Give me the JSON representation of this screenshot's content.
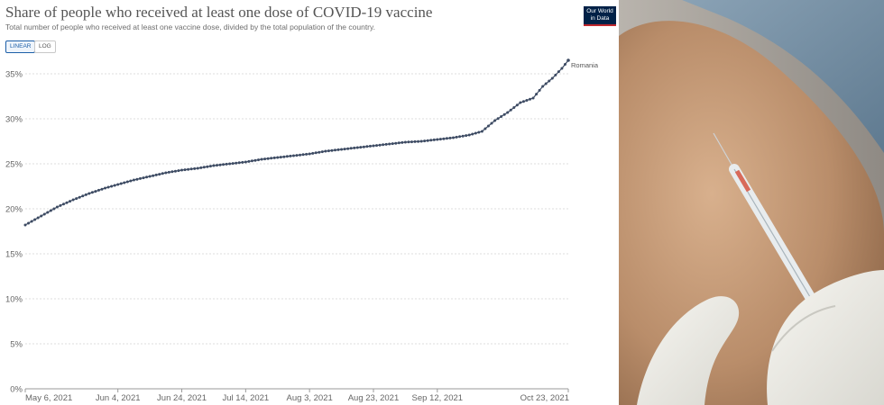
{
  "header": {
    "title": "Share of people who received at least one dose of COVID-19 vaccine",
    "subtitle": "Total number of people who received at least one vaccine dose, divided by the total population of the country.",
    "toggle_linear": "LINEAR",
    "toggle_log": "LOG"
  },
  "logo": {
    "line1": "Our World",
    "line2": "in Data"
  },
  "colors": {
    "series": "#3d4b63",
    "gridline": "#dddddd",
    "logo_bg": "#002147",
    "logo_accent": "#c0272d"
  },
  "chart_data": {
    "type": "line",
    "title": "Share of people who received at least one dose of COVID-19 vaccine",
    "subtitle": "Total number of people who received at least one vaccine dose, divided by the total population of the country.",
    "xlabel": "",
    "ylabel": "",
    "x_range": [
      "2021-05-06",
      "2021-10-23"
    ],
    "ylim": [
      0,
      35
    ],
    "yticks": [
      0,
      5,
      10,
      15,
      20,
      25,
      30,
      35
    ],
    "ytick_labels": [
      "0%",
      "5%",
      "10%",
      "15%",
      "20%",
      "25%",
      "30%",
      "35%"
    ],
    "xticks": [
      "2021-05-06",
      "2021-06-04",
      "2021-06-24",
      "2021-07-14",
      "2021-08-03",
      "2021-08-23",
      "2021-09-12",
      "2021-10-23"
    ],
    "xtick_labels": [
      "May 6, 2021",
      "Jun 4, 2021",
      "Jun 24, 2021",
      "Jul 14, 2021",
      "Aug 3, 2021",
      "Aug 23, 2021",
      "Sep 12, 2021",
      "Oct 23, 2021"
    ],
    "grid": true,
    "series": [
      {
        "name": "Romania",
        "points": [
          [
            "2021-05-06",
            18.2
          ],
          [
            "2021-05-11",
            19.2
          ],
          [
            "2021-05-16",
            20.2
          ],
          [
            "2021-05-21",
            21.0
          ],
          [
            "2021-05-26",
            21.7
          ],
          [
            "2021-05-31",
            22.3
          ],
          [
            "2021-06-04",
            22.7
          ],
          [
            "2021-06-09",
            23.2
          ],
          [
            "2021-06-14",
            23.6
          ],
          [
            "2021-06-19",
            24.0
          ],
          [
            "2021-06-24",
            24.3
          ],
          [
            "2021-06-29",
            24.5
          ],
          [
            "2021-07-04",
            24.8
          ],
          [
            "2021-07-09",
            25.0
          ],
          [
            "2021-07-14",
            25.2
          ],
          [
            "2021-07-19",
            25.5
          ],
          [
            "2021-07-24",
            25.7
          ],
          [
            "2021-07-29",
            25.9
          ],
          [
            "2021-08-03",
            26.1
          ],
          [
            "2021-08-08",
            26.4
          ],
          [
            "2021-08-13",
            26.6
          ],
          [
            "2021-08-18",
            26.8
          ],
          [
            "2021-08-23",
            27.0
          ],
          [
            "2021-08-28",
            27.2
          ],
          [
            "2021-09-02",
            27.4
          ],
          [
            "2021-09-07",
            27.5
          ],
          [
            "2021-09-12",
            27.7
          ],
          [
            "2021-09-17",
            27.9
          ],
          [
            "2021-09-22",
            28.2
          ],
          [
            "2021-09-26",
            28.6
          ],
          [
            "2021-09-30",
            29.8
          ],
          [
            "2021-10-04",
            30.7
          ],
          [
            "2021-10-08",
            31.8
          ],
          [
            "2021-10-12",
            32.3
          ],
          [
            "2021-10-15",
            33.6
          ],
          [
            "2021-10-18",
            34.5
          ],
          [
            "2021-10-21",
            35.6
          ],
          [
            "2021-10-23",
            36.5
          ]
        ]
      }
    ]
  }
}
